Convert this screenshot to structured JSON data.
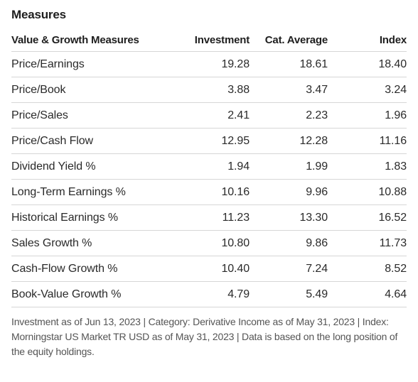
{
  "section_title": "Measures",
  "columns": [
    "Value & Growth Measures",
    "Investment",
    "Cat. Average",
    "Index"
  ],
  "rows": [
    [
      "Price/Earnings",
      "19.28",
      "18.61",
      "18.40"
    ],
    [
      "Price/Book",
      "3.88",
      "3.47",
      "3.24"
    ],
    [
      "Price/Sales",
      "2.41",
      "2.23",
      "1.96"
    ],
    [
      "Price/Cash Flow",
      "12.95",
      "12.28",
      "11.16"
    ],
    [
      "Dividend Yield %",
      "1.94",
      "1.99",
      "1.83"
    ],
    [
      "Long-Term Earnings %",
      "10.16",
      "9.96",
      "10.88"
    ],
    [
      "Historical Earnings %",
      "11.23",
      "13.30",
      "16.52"
    ],
    [
      "Sales Growth %",
      "10.80",
      "9.86",
      "11.73"
    ],
    [
      "Cash-Flow Growth %",
      "10.40",
      "7.24",
      "8.52"
    ],
    [
      "Book-Value Growth %",
      "4.79",
      "5.49",
      "4.64"
    ]
  ],
  "footnote": "Investment as of Jun 13, 2023 | Category: Derivative Income as of May 31, 2023 | Index: Morningstar US Market TR USD as of May 31, 2023 | Data is based on the long position of the equity holdings.",
  "colors": {
    "text": "#1e1e1e",
    "divider": "#d6d6d6",
    "footnote": "#545454"
  }
}
